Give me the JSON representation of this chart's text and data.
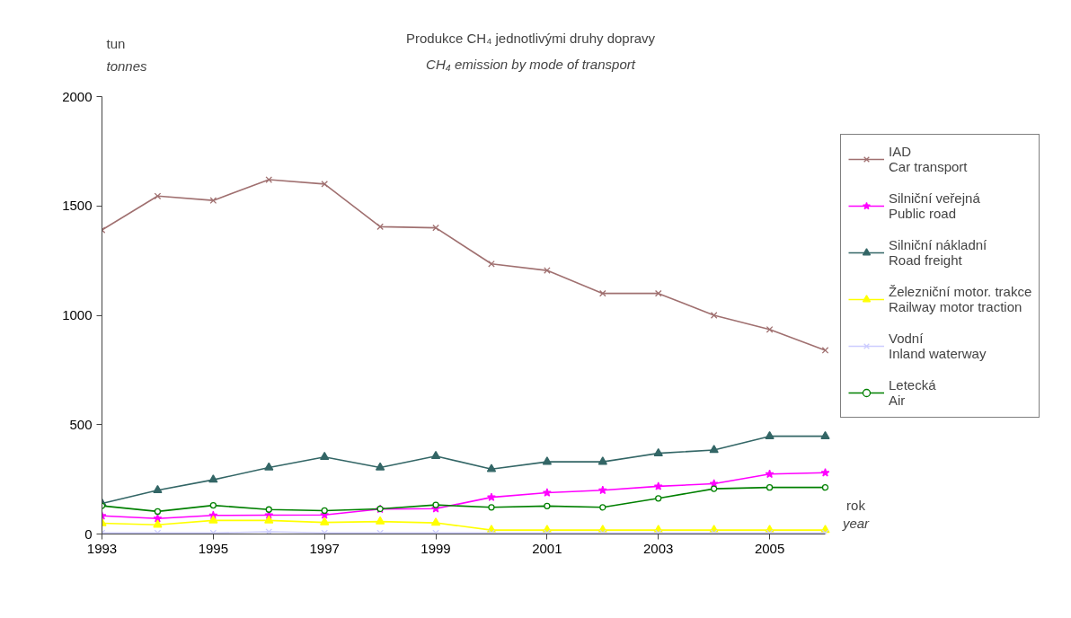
{
  "chart_data": {
    "type": "line",
    "title": "Produkce CH₄ jednotlivými druhy dopravy",
    "subtitle": "CH₄ emission by mode of transport",
    "ylabel": "tun\ntonnes",
    "xlabel": "rok\nyear",
    "x": [
      1993,
      1994,
      1995,
      1996,
      1997,
      1998,
      1999,
      2000,
      2001,
      2002,
      2003,
      2004,
      2005,
      2006
    ],
    "xlim": [
      1993,
      2006
    ],
    "xticks": [
      1993,
      1995,
      1997,
      1999,
      2001,
      2003,
      2005
    ],
    "ylim": [
      0,
      2000
    ],
    "yticks": [
      0,
      500,
      1000,
      1500,
      2000
    ],
    "grid": false,
    "legend": "right",
    "series": [
      {
        "name": "IAD\nCar transport",
        "color": "#a07070",
        "marker": "cross",
        "values": [
          1390,
          1545,
          1525,
          1620,
          1600,
          1405,
          1400,
          1235,
          1205,
          1100,
          1100,
          1000,
          935,
          840
        ]
      },
      {
        "name": "Silniční veřejná\nPublic road",
        "color": "#ff00ff",
        "marker": "star",
        "values": [
          83,
          71,
          85,
          86,
          87,
          114,
          116,
          168,
          189,
          200,
          218,
          230,
          274,
          280
        ]
      },
      {
        "name": "Silniční nákladní\nRoad freight",
        "color": "#336666",
        "marker": "triangle",
        "values": [
          140,
          200,
          248,
          304,
          352,
          304,
          356,
          297,
          330,
          330,
          369,
          384,
          447,
          447
        ]
      },
      {
        "name": "Železniční motor. trakce\nRailway motor traction",
        "color": "#ffff00",
        "marker": "triangle",
        "values": [
          49,
          42,
          62,
          62,
          53,
          57,
          51,
          18,
          18,
          18,
          18,
          18,
          18,
          18
        ]
      },
      {
        "name": "Vodní\nInland waterway",
        "color": "#ccccff",
        "marker": "cross",
        "values": [
          5,
          5,
          5,
          10,
          5,
          5,
          5,
          5,
          5,
          5,
          5,
          5,
          5,
          5
        ]
      },
      {
        "name": "Letecká\nAir",
        "color": "#008000",
        "marker": "circle",
        "values": [
          129,
          103,
          131,
          112,
          107,
          115,
          133,
          122,
          128,
          122,
          163,
          207,
          213,
          213
        ]
      }
    ]
  }
}
